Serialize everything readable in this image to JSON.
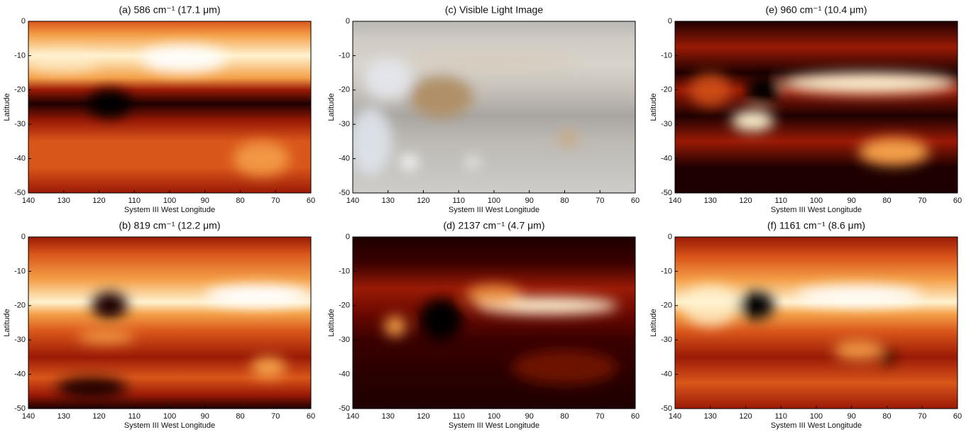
{
  "chart_data": [
    {
      "type": "image",
      "title": "(a) 586 cm⁻¹ (17.1 μm)",
      "x_label": "System III West Longitude",
      "y_label": "Latitude",
      "xlim": [
        140,
        60
      ],
      "xticks": [
        140,
        130,
        120,
        110,
        100,
        90,
        80,
        70,
        60
      ],
      "ylim": [
        -50,
        0
      ],
      "yticks": [
        0,
        -10,
        -20,
        -30,
        -40,
        -50
      ]
    },
    {
      "type": "image",
      "title": "(c) Visible Light Image",
      "x_label": "System III West Longitude",
      "y_label": "Latitude",
      "xlim": [
        140,
        60
      ],
      "xticks": [
        140,
        130,
        120,
        110,
        100,
        90,
        80,
        70,
        60
      ],
      "ylim": [
        -50,
        0
      ],
      "yticks": [
        0,
        -10,
        -20,
        -30,
        -40,
        -50
      ]
    },
    {
      "type": "image",
      "title": "(e) 960 cm⁻¹ (10.4 μm)",
      "x_label": "System III West Longitude",
      "y_label": "Latitude",
      "xlim": [
        140,
        60
      ],
      "xticks": [
        140,
        130,
        120,
        110,
        100,
        90,
        80,
        70,
        60
      ],
      "ylim": [
        -50,
        0
      ],
      "yticks": [
        0,
        -10,
        -20,
        -30,
        -40,
        -50
      ]
    },
    {
      "type": "image",
      "title": "(b) 819 cm⁻¹ (12.2 μm)",
      "x_label": "System III West Longitude",
      "y_label": "Latitude",
      "xlim": [
        140,
        60
      ],
      "xticks": [
        140,
        130,
        120,
        110,
        100,
        90,
        80,
        70,
        60
      ],
      "ylim": [
        -50,
        0
      ],
      "yticks": [
        0,
        -10,
        -20,
        -30,
        -40,
        -50
      ]
    },
    {
      "type": "image",
      "title": "(d) 2137 cm⁻¹ (4.7 μm)",
      "x_label": "System III West Longitude",
      "y_label": "Latitude",
      "xlim": [
        140,
        60
      ],
      "xticks": [
        140,
        130,
        120,
        110,
        100,
        90,
        80,
        70,
        60
      ],
      "ylim": [
        -50,
        0
      ],
      "yticks": [
        0,
        -10,
        -20,
        -30,
        -40,
        -50
      ]
    },
    {
      "type": "image",
      "title": "(f) 1161 cm⁻¹ (8.6 μm)",
      "x_label": "System III West Longitude",
      "y_label": "Latitude",
      "xlim": [
        140,
        60
      ],
      "xticks": [
        140,
        130,
        120,
        110,
        100,
        90,
        80,
        70,
        60
      ],
      "ylim": [
        -50,
        0
      ],
      "yticks": [
        0,
        -10,
        -20,
        -30,
        -40,
        -50
      ]
    }
  ]
}
